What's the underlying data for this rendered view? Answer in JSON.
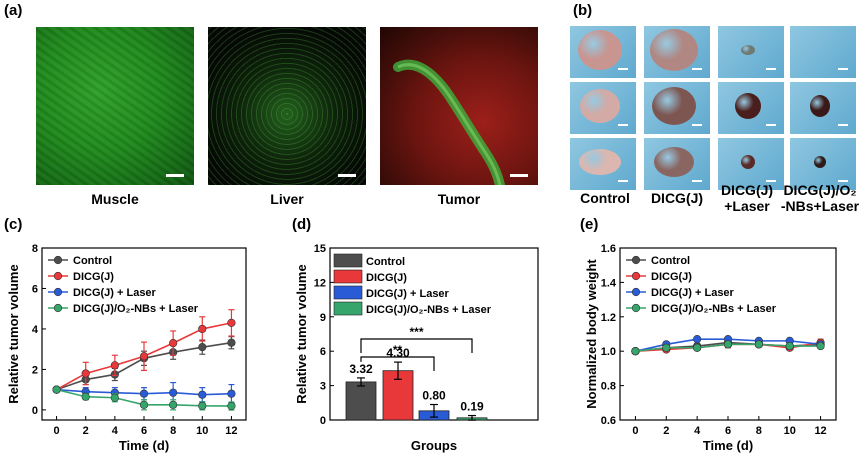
{
  "panel_labels": {
    "a": "(a)",
    "b": "(b)",
    "c": "(c)",
    "d": "(d)",
    "e": "(e)"
  },
  "panel_a": {
    "captions": [
      "Muscle",
      "Liver",
      "Tumor"
    ]
  },
  "panel_b": {
    "captions": [
      "Control",
      "DICG(J)",
      "DICG(J)\n+Laser",
      "DICG(J)/O₂\n-NBs+Laser"
    ]
  },
  "colors": {
    "control": "#4d4d4d",
    "dicg": "#e8383a",
    "laser": "#2a5bd7",
    "nbs": "#36a56b"
  },
  "chart_data": [
    {
      "panel": "c",
      "type": "line",
      "xlabel": "Time (d)",
      "ylabel": "Relative tumor volume",
      "xlim": [
        -1,
        13
      ],
      "ylim": [
        -0.5,
        8
      ],
      "xticks": [
        0,
        2,
        4,
        6,
        8,
        10,
        12
      ],
      "yticks": [
        0,
        2,
        4,
        6,
        8
      ],
      "legend_position": "top-left",
      "series": [
        {
          "name": "Control",
          "color": "#4d4d4d",
          "x": [
            0,
            2,
            4,
            6,
            8,
            10,
            12
          ],
          "y": [
            1.0,
            1.5,
            1.75,
            2.55,
            2.85,
            3.1,
            3.32
          ],
          "err": [
            0.05,
            0.25,
            0.3,
            0.35,
            0.35,
            0.35,
            0.3
          ]
        },
        {
          "name": "DICG(J)",
          "color": "#e8383a",
          "x": [
            0,
            2,
            4,
            6,
            8,
            10,
            12
          ],
          "y": [
            1.0,
            1.8,
            2.2,
            2.65,
            3.3,
            4.0,
            4.3
          ],
          "err": [
            0.05,
            0.55,
            0.5,
            0.7,
            0.6,
            0.6,
            0.65
          ]
        },
        {
          "name": "DICG(J) + Laser",
          "color": "#2a5bd7",
          "x": [
            0,
            2,
            4,
            6,
            8,
            10,
            12
          ],
          "y": [
            1.0,
            0.9,
            0.85,
            0.8,
            0.85,
            0.75,
            0.8
          ],
          "err": [
            0.05,
            0.2,
            0.25,
            0.3,
            0.5,
            0.35,
            0.45
          ]
        },
        {
          "name": "DICG(J)/O₂-NBs + Laser",
          "color": "#36a56b",
          "x": [
            0,
            2,
            4,
            6,
            8,
            10,
            12
          ],
          "y": [
            1.0,
            0.65,
            0.6,
            0.25,
            0.25,
            0.2,
            0.19
          ],
          "err": [
            0.05,
            0.15,
            0.2,
            0.25,
            0.25,
            0.2,
            0.2
          ]
        }
      ]
    },
    {
      "panel": "d",
      "type": "bar",
      "xlabel": "Groups",
      "ylabel": "Relative tumor volume",
      "ylim": [
        0,
        15
      ],
      "yticks": [
        0,
        3,
        6,
        9,
        12,
        15
      ],
      "legend_position": "top-left",
      "categories": [
        "Control",
        "DICG(J)",
        "DICG(J) + Laser",
        "DICG(J)/O₂-NBs + Laser"
      ],
      "values": [
        3.32,
        4.3,
        0.8,
        0.19
      ],
      "errors": [
        0.35,
        0.75,
        0.55,
        0.2
      ],
      "value_labels": [
        "3.32",
        "4.30",
        "0.80",
        "0.19"
      ],
      "colors": [
        "#4d4d4d",
        "#e8383a",
        "#2a5bd7",
        "#36a56b"
      ],
      "significance": [
        {
          "label": "**",
          "from": 0,
          "to": 2
        },
        {
          "label": "***",
          "from": 0,
          "to": 3
        }
      ]
    },
    {
      "panel": "e",
      "type": "line",
      "xlabel": "Time (d)",
      "ylabel": "Normalized body weight",
      "xlim": [
        -1,
        13
      ],
      "ylim": [
        0.6,
        1.6
      ],
      "xticks": [
        0,
        2,
        4,
        6,
        8,
        10,
        12
      ],
      "yticks": [
        0.6,
        0.8,
        1.0,
        1.2,
        1.4,
        1.6
      ],
      "legend_position": "top-left",
      "series": [
        {
          "name": "Control",
          "color": "#4d4d4d",
          "x": [
            0,
            2,
            4,
            6,
            8,
            10,
            12
          ],
          "y": [
            1.0,
            1.02,
            1.03,
            1.05,
            1.04,
            1.03,
            1.04
          ],
          "err": [
            0.01,
            0.01,
            0.01,
            0.02,
            0.01,
            0.01,
            0.02
          ]
        },
        {
          "name": "DICG(J)",
          "color": "#e8383a",
          "x": [
            0,
            2,
            4,
            6,
            8,
            10,
            12
          ],
          "y": [
            1.0,
            1.01,
            1.02,
            1.04,
            1.04,
            1.02,
            1.05
          ],
          "err": [
            0.01,
            0.01,
            0.01,
            0.02,
            0.01,
            0.01,
            0.02
          ]
        },
        {
          "name": "DICG(J) + Laser",
          "color": "#2a5bd7",
          "x": [
            0,
            2,
            4,
            6,
            8,
            10,
            12
          ],
          "y": [
            1.0,
            1.04,
            1.07,
            1.07,
            1.06,
            1.06,
            1.04
          ],
          "err": [
            0.01,
            0.01,
            0.01,
            0.01,
            0.01,
            0.01,
            0.01
          ]
        },
        {
          "name": "DICG(J)/O₂-NBs + Laser",
          "color": "#36a56b",
          "x": [
            0,
            2,
            4,
            6,
            8,
            10,
            12
          ],
          "y": [
            1.0,
            1.02,
            1.02,
            1.04,
            1.04,
            1.03,
            1.03
          ],
          "err": [
            0.01,
            0.01,
            0.01,
            0.01,
            0.01,
            0.01,
            0.01
          ]
        }
      ]
    }
  ]
}
